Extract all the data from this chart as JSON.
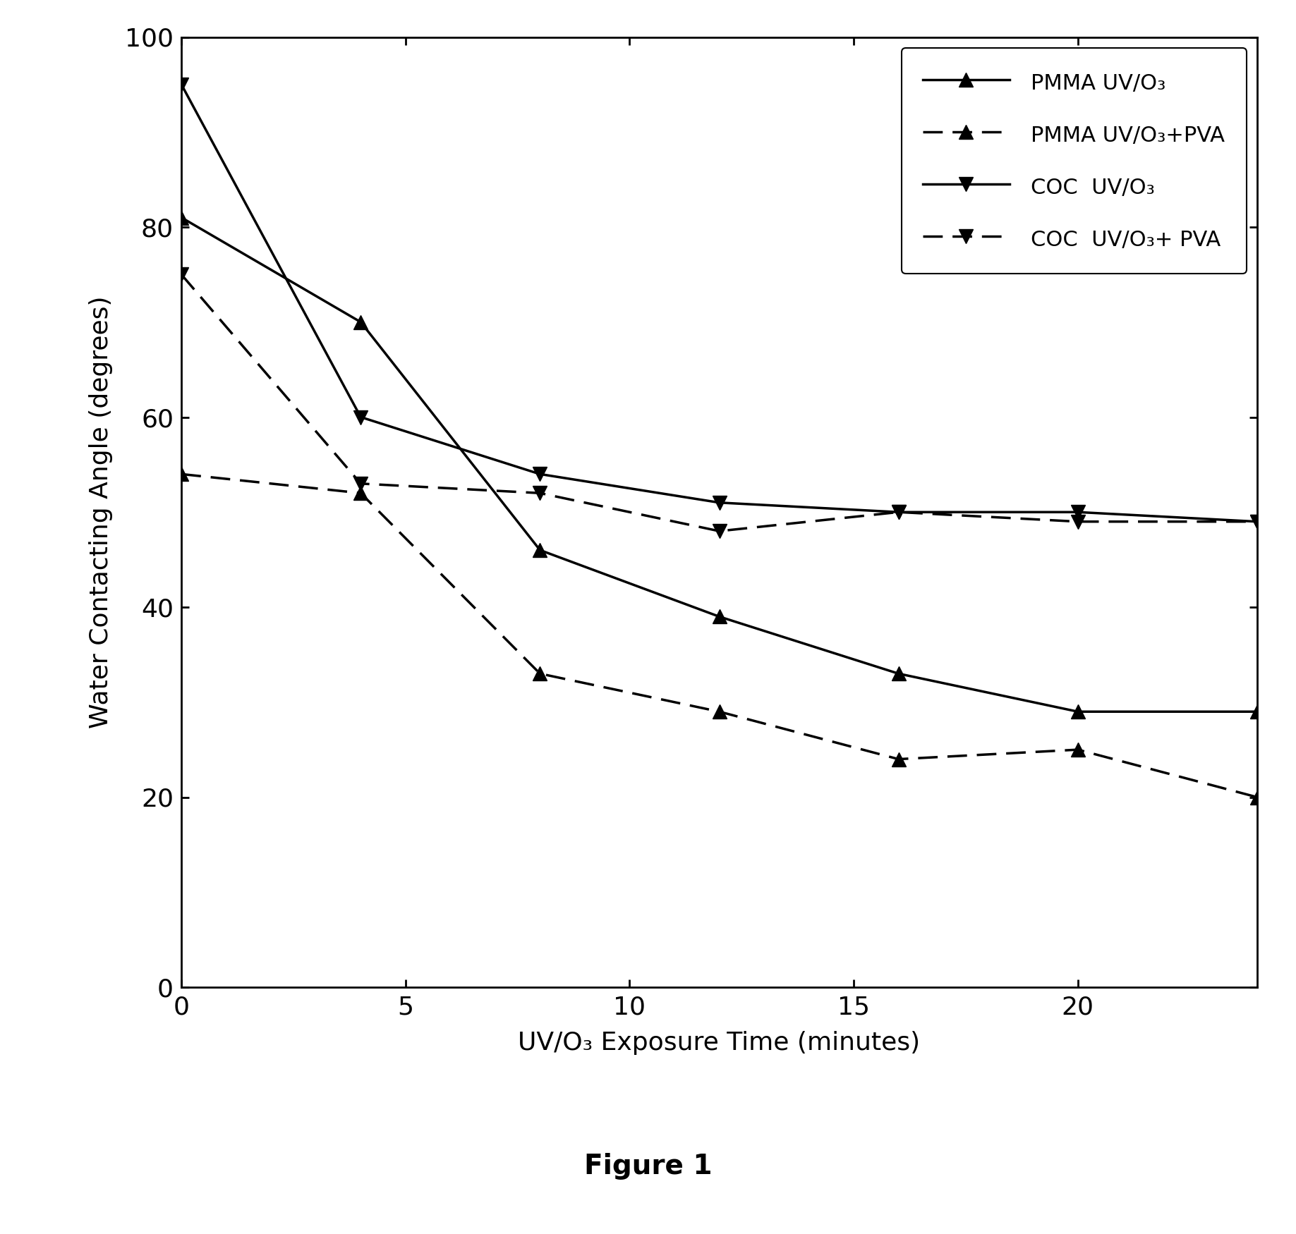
{
  "pmma_uvo3_x": [
    0,
    4,
    8,
    12,
    16,
    20,
    24
  ],
  "pmma_uvo3_y": [
    81,
    70,
    46,
    39,
    33,
    29,
    29
  ],
  "pmma_uvo3_pva_x": [
    0,
    4,
    8,
    12,
    16,
    20,
    24
  ],
  "pmma_uvo3_pva_y": [
    54,
    52,
    33,
    29,
    24,
    25,
    20
  ],
  "coc_uvo3_x": [
    0,
    4,
    8,
    12,
    16,
    20,
    24
  ],
  "coc_uvo3_y": [
    95,
    60,
    54,
    51,
    50,
    50,
    49
  ],
  "coc_uvo3_pva_x": [
    0,
    4,
    8,
    12,
    16,
    20,
    24
  ],
  "coc_uvo3_pva_y": [
    75,
    53,
    52,
    48,
    50,
    49,
    49
  ],
  "xlabel": "UV/O₃ Exposure Time (minutes)",
  "ylabel": "Water Contacting Angle (degrees)",
  "legend_labels": [
    "PMMA UV/O₃",
    "PMMA UV/O₃+PVA",
    "COC  UV/O₃",
    "COC  UV/O₃+ PVA"
  ],
  "figure_label": "Figure 1",
  "xlim": [
    0,
    24
  ],
  "ylim": [
    0,
    100
  ],
  "xticks": [
    0,
    5,
    10,
    15,
    20
  ],
  "yticks": [
    0,
    20,
    40,
    60,
    80,
    100
  ],
  "line_color": "#000000",
  "linewidth": 2.5,
  "markersize": 14,
  "background_color": "#ffffff",
  "figure_label_fontsize": 28,
  "label_fontsize": 26,
  "tick_fontsize": 26,
  "legend_fontsize": 22
}
